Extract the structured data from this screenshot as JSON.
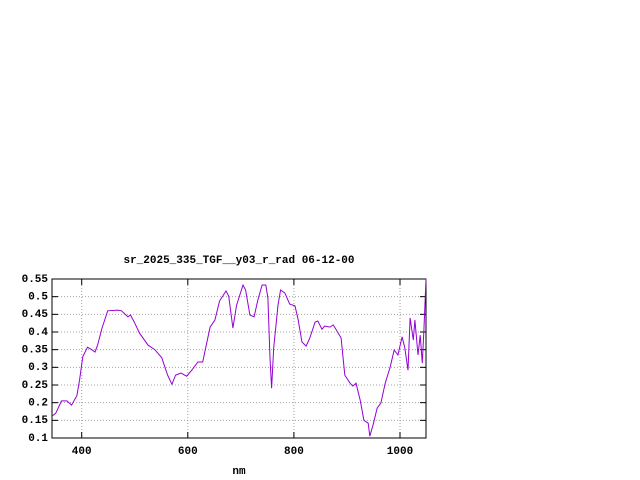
{
  "chart_data": {
    "type": "line",
    "title": "sr_2025_335_TGF__y03_r_rad 06-12-00",
    "x_label": "nm",
    "x": [
      344,
      351,
      362,
      372,
      381,
      391,
      396,
      402,
      411,
      419,
      425,
      430,
      438,
      449,
      468,
      475,
      487,
      492,
      500,
      509,
      525,
      538,
      551,
      562,
      570,
      577,
      587,
      598,
      609,
      619,
      628,
      642,
      651,
      660,
      672,
      677,
      685,
      692,
      704,
      709,
      717,
      725,
      732,
      740,
      747,
      751,
      755,
      758,
      762,
      770,
      775,
      783,
      792,
      802,
      808,
      815,
      823,
      830,
      840,
      845,
      853,
      858,
      868,
      874,
      881,
      889,
      896,
      906,
      911,
      917,
      925,
      932,
      940,
      943,
      949,
      957,
      964,
      972,
      981,
      989,
      996,
      1004,
      1009,
      1015,
      1019,
      1025,
      1028,
      1034,
      1038,
      1042,
      1045,
      1049
    ],
    "values": [
      0.162,
      0.17,
      0.205,
      0.205,
      0.193,
      0.22,
      0.265,
      0.33,
      0.357,
      0.35,
      0.343,
      0.363,
      0.41,
      0.46,
      0.462,
      0.46,
      0.443,
      0.448,
      0.425,
      0.397,
      0.363,
      0.35,
      0.327,
      0.278,
      0.252,
      0.278,
      0.284,
      0.275,
      0.295,
      0.315,
      0.315,
      0.414,
      0.434,
      0.488,
      0.516,
      0.502,
      0.411,
      0.476,
      0.533,
      0.519,
      0.448,
      0.443,
      0.49,
      0.533,
      0.533,
      0.496,
      0.326,
      0.241,
      0.355,
      0.476,
      0.519,
      0.51,
      0.479,
      0.474,
      0.434,
      0.372,
      0.36,
      0.383,
      0.428,
      0.431,
      0.408,
      0.417,
      0.414,
      0.42,
      0.403,
      0.383,
      0.278,
      0.255,
      0.247,
      0.255,
      0.207,
      0.15,
      0.142,
      0.105,
      0.136,
      0.185,
      0.199,
      0.255,
      0.298,
      0.349,
      0.335,
      0.386,
      0.355,
      0.292,
      0.44,
      0.377,
      0.434,
      0.335,
      0.391,
      0.312,
      0.405,
      0.55
    ],
    "color": "#9400d3",
    "xlim": [
      344,
      1049
    ],
    "xticks": [
      400,
      600,
      800,
      1000
    ],
    "ylim": [
      0.1,
      0.55
    ],
    "yticks": [
      0.1,
      0.15,
      0.2,
      0.25,
      0.3,
      0.35,
      0.4,
      0.45,
      0.5,
      0.55
    ],
    "grid": true
  }
}
